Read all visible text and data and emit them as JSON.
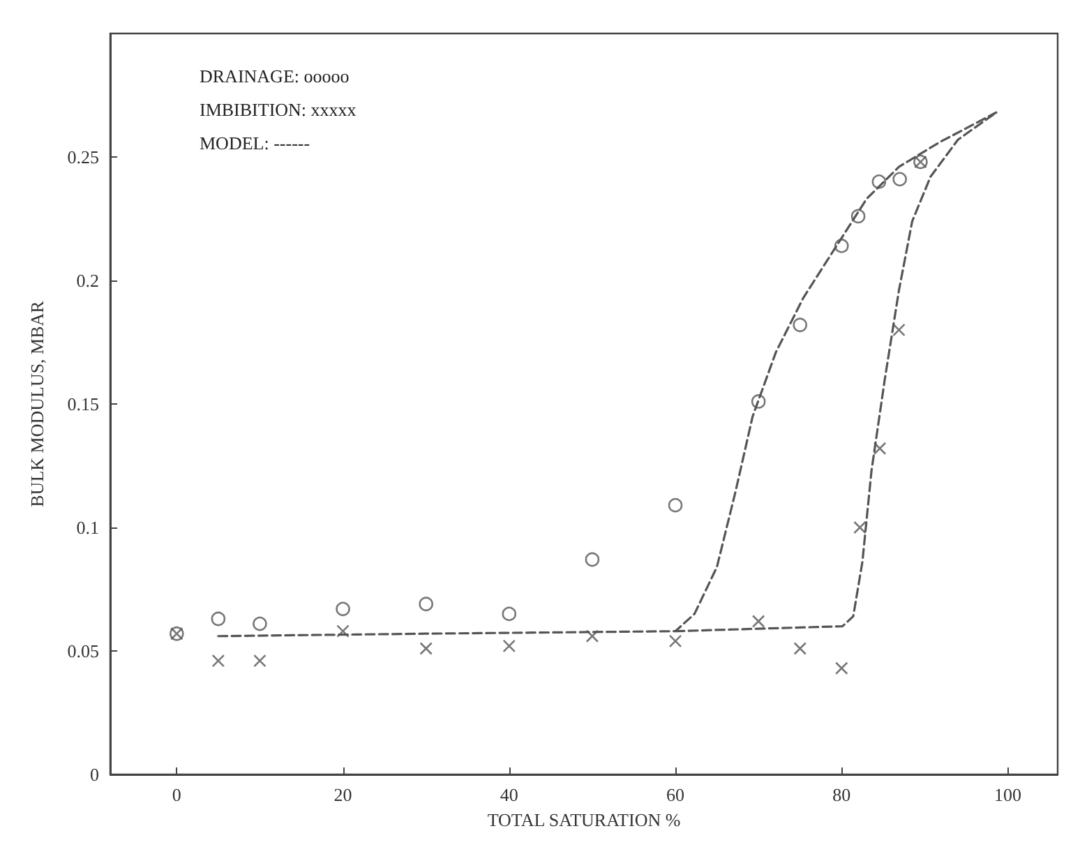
{
  "chart_data": {
    "type": "scatter",
    "xlabel": "TOTAL SATURATION %",
    "ylabel": "BULK MODULUS, MBAR",
    "xlim": [
      -8,
      106
    ],
    "xticks": [
      0,
      20,
      40,
      60,
      80,
      100
    ],
    "ylim": [
      0,
      0.3
    ],
    "yticks": [
      0,
      0.05,
      0.1,
      0.15,
      0.2,
      0.25
    ],
    "grid": false,
    "annotations": [
      "DRAINAGE: ooooo",
      "IMBIBITION: xxxxx",
      "MODEL: ------"
    ],
    "series": [
      {
        "marker": "circle",
        "color": "#555555",
        "x": [
          0,
          5,
          10,
          20,
          30,
          40,
          50,
          60,
          70,
          75,
          80,
          82,
          84.5,
          87,
          89.5
        ],
        "values": [
          0.057,
          0.063,
          0.061,
          0.067,
          0.069,
          0.065,
          0.087,
          0.109,
          0.151,
          0.182,
          0.214,
          0.226,
          0.24,
          0.241,
          0.248
        ]
      },
      {
        "marker": "cross",
        "color": "#555555",
        "x": [
          0,
          5,
          10,
          20,
          30,
          40,
          50,
          60,
          70,
          75,
          80,
          82.2,
          84.6,
          86.9,
          89.5
        ],
        "values": [
          0.057,
          0.046,
          0.046,
          0.058,
          0.051,
          0.052,
          0.056,
          0.054,
          0.062,
          0.051,
          0.043,
          0.1,
          0.132,
          0.18,
          0.248
        ]
      },
      {
        "type": "line",
        "marker": "none",
        "line_style": "dashed",
        "color": "#555555",
        "x": [
          5,
          30,
          60,
          62.3,
          65,
          67.2,
          69.3,
          72.1,
          75.4,
          79.2,
          83,
          86.9,
          91.8,
          98.6
        ],
        "values": [
          0.056,
          0.057,
          0.058,
          0.065,
          0.084,
          0.114,
          0.145,
          0.171,
          0.193,
          0.213,
          0.233,
          0.246,
          0.256,
          0.268
        ]
      },
      {
        "type": "line",
        "marker": "none",
        "line_style": "dashed",
        "color": "#555555",
        "x": [
          60,
          70,
          80.1,
          81.4,
          82.5,
          83.6,
          85.2,
          86.9,
          88.5,
          90.7,
          94,
          98.6
        ],
        "values": [
          0.058,
          0.059,
          0.06,
          0.064,
          0.086,
          0.123,
          0.16,
          0.196,
          0.224,
          0.242,
          0.257,
          0.268
        ]
      }
    ]
  }
}
